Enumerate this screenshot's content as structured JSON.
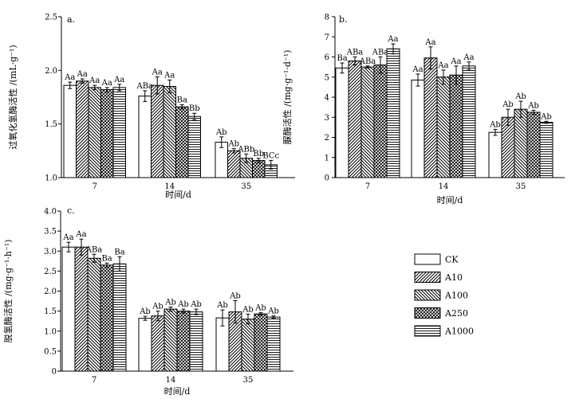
{
  "chart_data": [
    {
      "type": "bar",
      "panel_label": "a.",
      "ylabel": "过氧化氢酶活性 /(mL·g⁻¹)",
      "xlabel": "时间/d",
      "categories": [
        "7",
        "14",
        "35"
      ],
      "ylim": [
        1.0,
        2.5
      ],
      "yticks": [
        "1.0",
        "1.5",
        "2.0",
        "2.5"
      ],
      "series": [
        {
          "name": "CK",
          "values": [
            1.86,
            1.76,
            1.33
          ],
          "errors": [
            0.03,
            0.05,
            0.05
          ],
          "labels": [
            "Aa",
            "ABa",
            "Ab"
          ]
        },
        {
          "name": "A10",
          "values": [
            1.9,
            1.86,
            1.25
          ],
          "errors": [
            0.02,
            0.08,
            0.02
          ],
          "labels": [
            "Aa",
            "Aa",
            "Ab"
          ]
        },
        {
          "name": "A100",
          "values": [
            1.84,
            1.85,
            1.18
          ],
          "errors": [
            0.02,
            0.06,
            0.04
          ],
          "labels": [
            "Aa",
            "Aa",
            "ABb"
          ]
        },
        {
          "name": "A250",
          "values": [
            1.82,
            1.66,
            1.16
          ],
          "errors": [
            0.02,
            0.02,
            0.02
          ],
          "labels": [
            "Aa",
            "Ba",
            "Bb"
          ]
        },
        {
          "name": "A1000",
          "values": [
            1.84,
            1.57,
            1.12
          ],
          "errors": [
            0.03,
            0.03,
            0.04
          ],
          "labels": [
            "Aa",
            "Bb",
            "BCc"
          ]
        }
      ]
    },
    {
      "type": "bar",
      "panel_label": "b.",
      "ylabel": "脲酶活性 /(mg·g⁻¹·d⁻¹)",
      "xlabel": "时间/d",
      "categories": [
        "7",
        "14",
        "35"
      ],
      "ylim": [
        0,
        8
      ],
      "yticks": [
        "0",
        "1",
        "2",
        "3",
        "4",
        "5",
        "6",
        "7",
        "8"
      ],
      "series": [
        {
          "name": "CK",
          "values": [
            5.45,
            4.85,
            2.25
          ],
          "errors": [
            0.25,
            0.3,
            0.15
          ],
          "labels": [
            "Ba",
            "Aa",
            "Ab"
          ]
        },
        {
          "name": "A10",
          "values": [
            5.8,
            5.95,
            3.0
          ],
          "errors": [
            0.2,
            0.55,
            0.4
          ],
          "labels": [
            "ABa",
            "Aa",
            "Ab"
          ]
        },
        {
          "name": "A100",
          "values": [
            5.5,
            5.0,
            3.4
          ],
          "errors": [
            0.05,
            0.35,
            0.4
          ],
          "labels": [
            "ABa",
            "Aa",
            "Ab"
          ]
        },
        {
          "name": "A250",
          "values": [
            5.6,
            5.1,
            3.25
          ],
          "errors": [
            0.4,
            0.45,
            0.1
          ],
          "labels": [
            "ABa",
            "Aa",
            "Ab"
          ]
        },
        {
          "name": "A1000",
          "values": [
            6.4,
            5.55,
            2.75
          ],
          "errors": [
            0.25,
            0.2,
            0.05
          ],
          "labels": [
            "Aa",
            "Aa",
            "Ab"
          ]
        }
      ]
    },
    {
      "type": "bar",
      "panel_label": "c.",
      "ylabel": "脱氢酶活性 /(mg·g⁻¹·h⁻¹)",
      "xlabel": "时间/d",
      "categories": [
        "7",
        "14",
        "35"
      ],
      "ylim": [
        0,
        4
      ],
      "yticks": [
        "0",
        "0.5",
        "1.0",
        "1.5",
        "2.0",
        "2.5",
        "3.0",
        "3.5",
        "4.0"
      ],
      "series": [
        {
          "name": "CK",
          "values": [
            3.1,
            1.32,
            1.33
          ],
          "errors": [
            0.12,
            0.05,
            0.2
          ],
          "labels": [
            "Aa",
            "Ab",
            "Ab"
          ]
        },
        {
          "name": "A10",
          "values": [
            3.1,
            1.38,
            1.48
          ],
          "errors": [
            0.2,
            0.12,
            0.28
          ],
          "labels": [
            "Aa",
            "Ab",
            "Ab"
          ]
        },
        {
          "name": "A100",
          "values": [
            2.82,
            1.55,
            1.3
          ],
          "errors": [
            0.1,
            0.05,
            0.12
          ],
          "labels": [
            "ABa",
            "Ab",
            "Ab"
          ]
        },
        {
          "name": "A250",
          "values": [
            2.65,
            1.5,
            1.43
          ],
          "errors": [
            0.05,
            0.05,
            0.03
          ],
          "labels": [
            "Ba",
            "Ab",
            "Ab"
          ]
        },
        {
          "name": "A1000",
          "values": [
            2.68,
            1.48,
            1.35
          ],
          "errors": [
            0.18,
            0.07,
            0.03
          ],
          "labels": [
            "Ba",
            "Ab",
            "Ab"
          ]
        }
      ]
    }
  ],
  "legend": {
    "items": [
      {
        "label": "CK",
        "pattern": "blank"
      },
      {
        "label": "A10",
        "pattern": "diagonal-hatch"
      },
      {
        "label": "A100",
        "pattern": "back-diagonal-hatch"
      },
      {
        "label": "A250",
        "pattern": "crosshatch"
      },
      {
        "label": "A1000",
        "pattern": "horizontal-lines"
      }
    ]
  }
}
